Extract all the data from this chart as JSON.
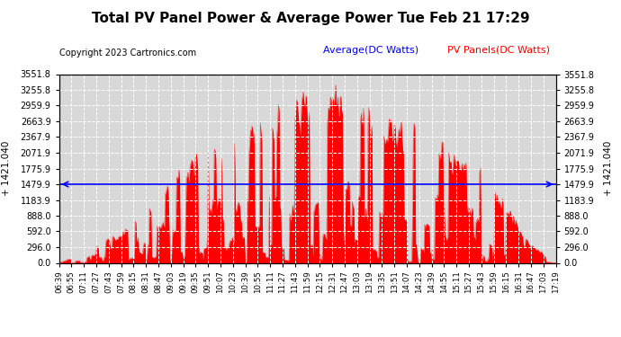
{
  "title": "Total PV Panel Power & Average Power Tue Feb 21 17:29",
  "copyright": "Copyright 2023 Cartronics.com",
  "legend_avg": "Average(DC Watts)",
  "legend_pv": "PV Panels(DC Watts)",
  "ylabel_left": "+ 1421.040",
  "ylabel_right": "+ 1421.040",
  "avg_value": 1479.9,
  "ymax": 3551.8,
  "yticks": [
    0.0,
    296.0,
    592.0,
    888.0,
    1183.9,
    1479.9,
    1775.9,
    2071.9,
    2367.9,
    2663.9,
    2959.9,
    3255.8,
    3551.8
  ],
  "ytick_labels": [
    "0.0",
    "296.0",
    "592.0",
    "888.0",
    "1183.9",
    "1479.9",
    "1775.9",
    "2071.9",
    "2367.9",
    "2663.9",
    "2959.9",
    "3255.8",
    "3551.8"
  ],
  "xtick_labels": [
    "06:39",
    "06:55",
    "07:11",
    "07:27",
    "07:43",
    "07:59",
    "08:15",
    "08:31",
    "08:47",
    "09:03",
    "09:19",
    "09:35",
    "09:51",
    "10:07",
    "10:23",
    "10:39",
    "10:55",
    "11:11",
    "11:27",
    "11:43",
    "11:59",
    "12:15",
    "12:31",
    "12:47",
    "13:03",
    "13:19",
    "13:35",
    "13:51",
    "14:07",
    "14:23",
    "14:39",
    "14:55",
    "15:11",
    "15:27",
    "15:43",
    "15:59",
    "16:15",
    "16:31",
    "16:47",
    "17:03",
    "17:19"
  ],
  "background_color": "#ffffff",
  "plot_bg_color": "#d8d8d8",
  "bar_color": "#ff0000",
  "avg_line_color": "#0000ff",
  "grid_color": "#ffffff",
  "title_color": "#000000",
  "copyright_color": "#000000",
  "avg_legend_color": "#0000ff",
  "pv_legend_color": "#ff0000",
  "n_points": 660
}
